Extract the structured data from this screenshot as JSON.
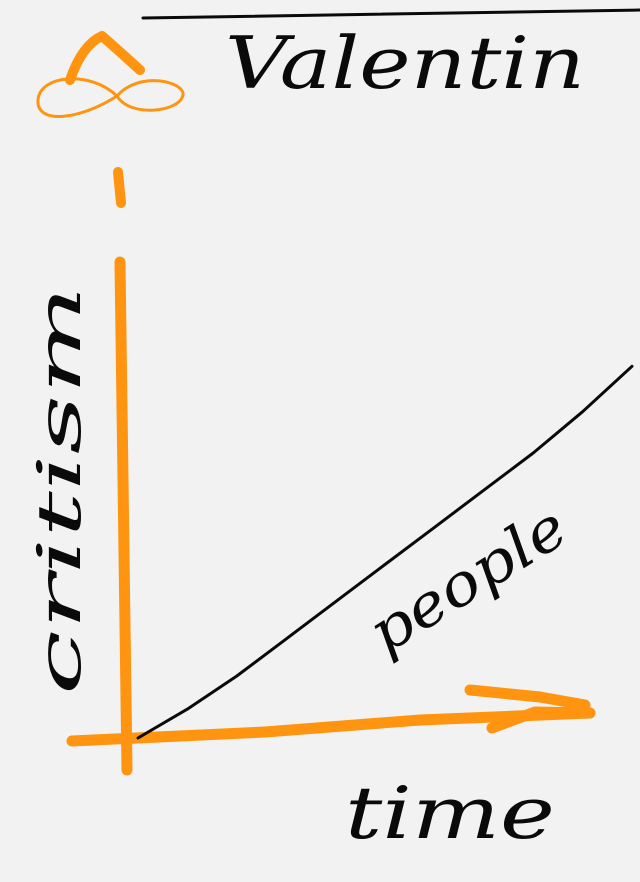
{
  "colors": {
    "background": "#f2f2f2",
    "axis": "#ff9410",
    "ink": "#0a0a0a"
  },
  "chart_data": {
    "type": "line",
    "title": "Valentin",
    "xlabel": "time",
    "ylabel": "critism",
    "grid": false,
    "xlim": [
      0,
      10
    ],
    "ylim": [
      0,
      10
    ],
    "series": [
      {
        "name": "people",
        "x": [
          0,
          1,
          2,
          3,
          4,
          5,
          6,
          7,
          8,
          9,
          10
        ],
        "y": [
          0,
          0.7,
          1.5,
          2.4,
          3.3,
          4.2,
          5.1,
          6.0,
          6.9,
          7.9,
          9.0
        ]
      }
    ]
  }
}
